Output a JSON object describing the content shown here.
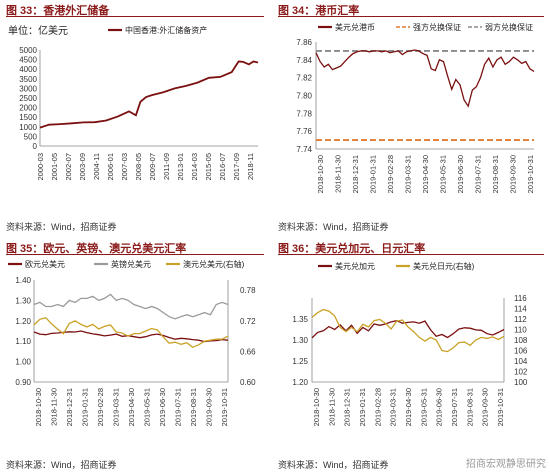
{
  "source_label": "资料来源：Wind，招商证券",
  "watermark": "招商宏观静思研究",
  "chart_data": [
    {
      "id": "c33",
      "type": "line",
      "title": "图 33：香港外汇储备",
      "unit_label": "单位：亿美元",
      "series": [
        {
          "name": "中国香港:外汇储备资产",
          "color": "#7b1010",
          "axis": "left",
          "x": [
            2000.2,
            2001.0,
            2002.0,
            2003.0,
            2004.0,
            2005.0,
            2006.0,
            2007.0,
            2008.0,
            2008.6,
            2009.0,
            2009.5,
            2010.0,
            2011.0,
            2012.0,
            2013.0,
            2014.0,
            2015.0,
            2016.0,
            2017.0,
            2017.6,
            2018.0,
            2018.5,
            2018.9,
            2019.3
          ],
          "y": [
            960,
            1110,
            1140,
            1180,
            1230,
            1240,
            1330,
            1530,
            1800,
            1600,
            2300,
            2550,
            2650,
            2800,
            3000,
            3130,
            3300,
            3550,
            3600,
            3850,
            4400,
            4380,
            4250,
            4400,
            4350
          ]
        }
      ],
      "x_ticks": [
        "2000-03",
        "2001-05",
        "2002-07",
        "2003-09",
        "2004-11",
        "2006-01",
        "2007-03",
        "2008-05",
        "2009-07",
        "2011-09",
        "2013-01",
        "2014-03",
        "2015-05",
        "2016-07",
        "2017-09",
        "2018-11"
      ],
      "ylim": [
        0,
        5000
      ],
      "y_ticks": [
        0,
        500,
        1000,
        1500,
        2000,
        2500,
        3000,
        3500,
        4000,
        4500,
        5000
      ]
    },
    {
      "id": "c34",
      "type": "line",
      "title": "图 34：港币汇率",
      "series": [
        {
          "name": "美元兑港币",
          "color": "#7b1010",
          "style": "solid",
          "y": [
            7.848,
            7.838,
            7.832,
            7.835,
            7.829,
            7.831,
            7.833,
            7.838,
            7.843,
            7.847,
            7.849,
            7.85,
            7.85,
            7.849,
            7.85,
            7.85,
            7.849,
            7.85,
            7.848,
            7.849,
            7.85,
            7.846,
            7.849,
            7.85,
            7.851,
            7.85,
            7.847,
            7.845,
            7.83,
            7.828,
            7.84,
            7.838,
            7.822,
            7.807,
            7.818,
            7.812,
            7.795,
            7.788,
            7.806,
            7.81,
            7.82,
            7.835,
            7.842,
            7.832,
            7.84,
            7.843,
            7.835,
            7.838,
            7.843,
            7.84,
            7.836,
            7.838,
            7.83,
            7.827
          ]
        },
        {
          "name": "强方兑换保证",
          "color": "#e07a30",
          "style": "dashed",
          "y": [
            7.75
          ]
        },
        {
          "name": "弱方兑换保证",
          "color": "#8a8a8a",
          "style": "dashed",
          "y": [
            7.85
          ]
        }
      ],
      "x_ticks": [
        "2018-10-30",
        "2018-11-30",
        "2018-12-31",
        "2019-01-31",
        "2019-02-28",
        "2019-03-31",
        "2019-04-30",
        "2019-05-31",
        "2019-06-30",
        "2019-07-31",
        "2019-08-31",
        "2019-09-30",
        "2019-10-31"
      ],
      "ylim": [
        7.74,
        7.86
      ],
      "y_ticks": [
        "7.74",
        "7.76",
        "7.78",
        "7.80",
        "7.82",
        "7.84",
        "7.86"
      ]
    },
    {
      "id": "c35",
      "type": "line",
      "title": "图 35：欧元、英镑、澳元兑美元汇率",
      "series": [
        {
          "name": "欧元兑美元",
          "color": "#7b1010",
          "axis": "left",
          "y": [
            1.145,
            1.135,
            1.132,
            1.138,
            1.14,
            1.143,
            1.146,
            1.145,
            1.15,
            1.142,
            1.136,
            1.132,
            1.126,
            1.13,
            1.135,
            1.124,
            1.127,
            1.122,
            1.117,
            1.122,
            1.131,
            1.135,
            1.128,
            1.118,
            1.11,
            1.114,
            1.112,
            1.108,
            1.105,
            1.098,
            1.102,
            1.103,
            1.108,
            1.105
          ]
        },
        {
          "name": "英镑兑美元",
          "color": "#9a9a9a",
          "axis": "left",
          "y": [
            1.28,
            1.29,
            1.27,
            1.27,
            1.28,
            1.27,
            1.3,
            1.29,
            1.31,
            1.31,
            1.32,
            1.3,
            1.31,
            1.33,
            1.3,
            1.31,
            1.3,
            1.28,
            1.27,
            1.26,
            1.27,
            1.26,
            1.24,
            1.22,
            1.21,
            1.22,
            1.23,
            1.22,
            1.23,
            1.24,
            1.23,
            1.28,
            1.29,
            1.28
          ]
        },
        {
          "name": "澳元兑美元(右轴)",
          "color": "#c9a227",
          "axis": "right",
          "y": [
            0.712,
            0.723,
            0.726,
            0.714,
            0.704,
            0.695,
            0.715,
            0.72,
            0.713,
            0.708,
            0.713,
            0.704,
            0.709,
            0.712,
            0.698,
            0.696,
            0.69,
            0.695,
            0.695,
            0.7,
            0.705,
            0.702,
            0.688,
            0.676,
            0.678,
            0.674,
            0.677,
            0.668,
            0.673,
            0.68,
            0.682,
            0.684,
            0.684,
            0.69
          ]
        }
      ],
      "x_ticks": [
        "2018-10-30",
        "2018-11-30",
        "2018-12-31",
        "2019-01-31",
        "2019-02-28",
        "2019-03-31",
        "2019-04-30",
        "2019-05-31",
        "2019-06-30",
        "2019-07-31",
        "2019-08-31",
        "2019-09-30",
        "2019-10-31"
      ],
      "ylim_left": [
        0.9,
        1.4
      ],
      "y_ticks_left": [
        "0.90",
        "1.00",
        "1.10",
        "1.20",
        "1.30",
        "1.40"
      ],
      "ylim_right": [
        0.6,
        0.8
      ],
      "y_ticks_right": [
        "0.60",
        "0.66",
        "0.72",
        "0.78"
      ]
    },
    {
      "id": "c36",
      "type": "line",
      "title": "图 36：美元兑加元、日元汇率",
      "series": [
        {
          "name": "美元兑加元",
          "color": "#7b1010",
          "axis": "left",
          "y": [
            1.305,
            1.318,
            1.322,
            1.332,
            1.325,
            1.336,
            1.322,
            1.335,
            1.316,
            1.33,
            1.322,
            1.338,
            1.335,
            1.338,
            1.343,
            1.346,
            1.34,
            1.342,
            1.343,
            1.34,
            1.345,
            1.324,
            1.309,
            1.313,
            1.306,
            1.315,
            1.326,
            1.329,
            1.328,
            1.324,
            1.323,
            1.315,
            1.312,
            1.318,
            1.325
          ]
        },
        {
          "name": "美元兑日元(右轴)",
          "color": "#c9a227",
          "axis": "right",
          "y": [
            112.3,
            113.2,
            113.8,
            113.5,
            112.6,
            110.4,
            109.6,
            110.4,
            109.6,
            111.0,
            110.5,
            111.7,
            111.9,
            111.2,
            110.1,
            111.6,
            111.8,
            110.5,
            109.6,
            108.5,
            107.8,
            108.5,
            108.0,
            106.0,
            105.8,
            106.5,
            107.5,
            107.6,
            107.0,
            108.0,
            108.5,
            108.3,
            108.6,
            108.1,
            108.7
          ]
        }
      ],
      "x_ticks": [
        "2018-10-30",
        "2018-11-30",
        "2018-12-31",
        "2019-01-31",
        "2019-02-28",
        "2019-03-31",
        "2019-04-30",
        "2019-05-31",
        "2019-06-30",
        "2019-07-31",
        "2019-08-31",
        "2019-09-30",
        "2019-10-31"
      ],
      "ylim_left": [
        1.2,
        1.4
      ],
      "y_ticks_left": [
        "1.20",
        "1.25",
        "1.30",
        "1.35"
      ],
      "ylim_right": [
        100,
        116
      ],
      "y_ticks_right": [
        "100",
        "102",
        "104",
        "106",
        "108",
        "110",
        "112",
        "114",
        "116"
      ]
    }
  ]
}
